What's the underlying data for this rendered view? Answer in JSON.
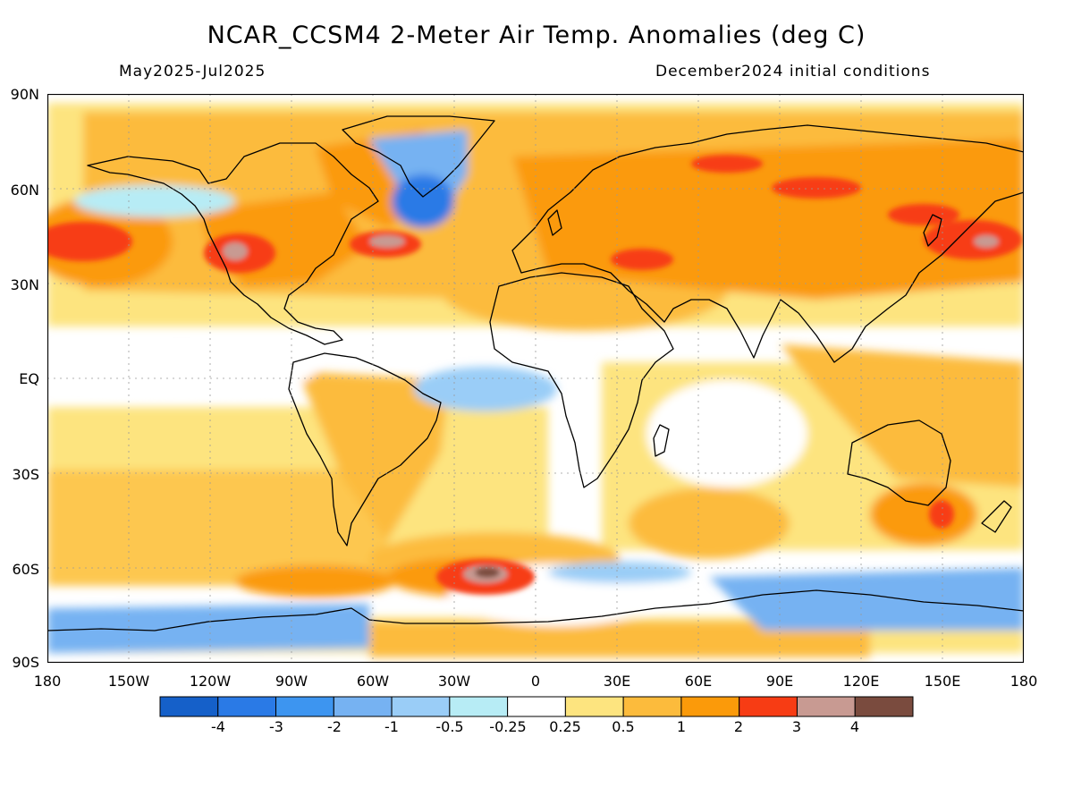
{
  "header": {
    "title": "NCAR_CCSM4 2-Meter Air Temp. Anomalies (deg C)",
    "period": "May2025-Jul2025",
    "initial_conditions": "December2024 initial conditions"
  },
  "axes": {
    "lat_ticks": [
      "90N",
      "60N",
      "30N",
      "EQ",
      "30S",
      "60S",
      "90S"
    ],
    "lon_ticks": [
      "180",
      "150W",
      "120W",
      "90W",
      "60W",
      "30W",
      "0",
      "30E",
      "60E",
      "90E",
      "120E",
      "150E",
      "180"
    ]
  },
  "colorbar": {
    "labels": [
      "-4",
      "-3",
      "-2",
      "-1",
      "-0.5",
      "-0.25",
      "0.25",
      "0.5",
      "1",
      "2",
      "3",
      "4"
    ],
    "colors": [
      "#1560c9",
      "#2a7ae6",
      "#3d95f0",
      "#76b2f2",
      "#9acdf7",
      "#b7ecf5",
      "#ffffff",
      "#fde47f",
      "#fcbb3c",
      "#fb9a0a",
      "#f73c14",
      "#c89a92",
      "#7a4b3e"
    ]
  }
}
